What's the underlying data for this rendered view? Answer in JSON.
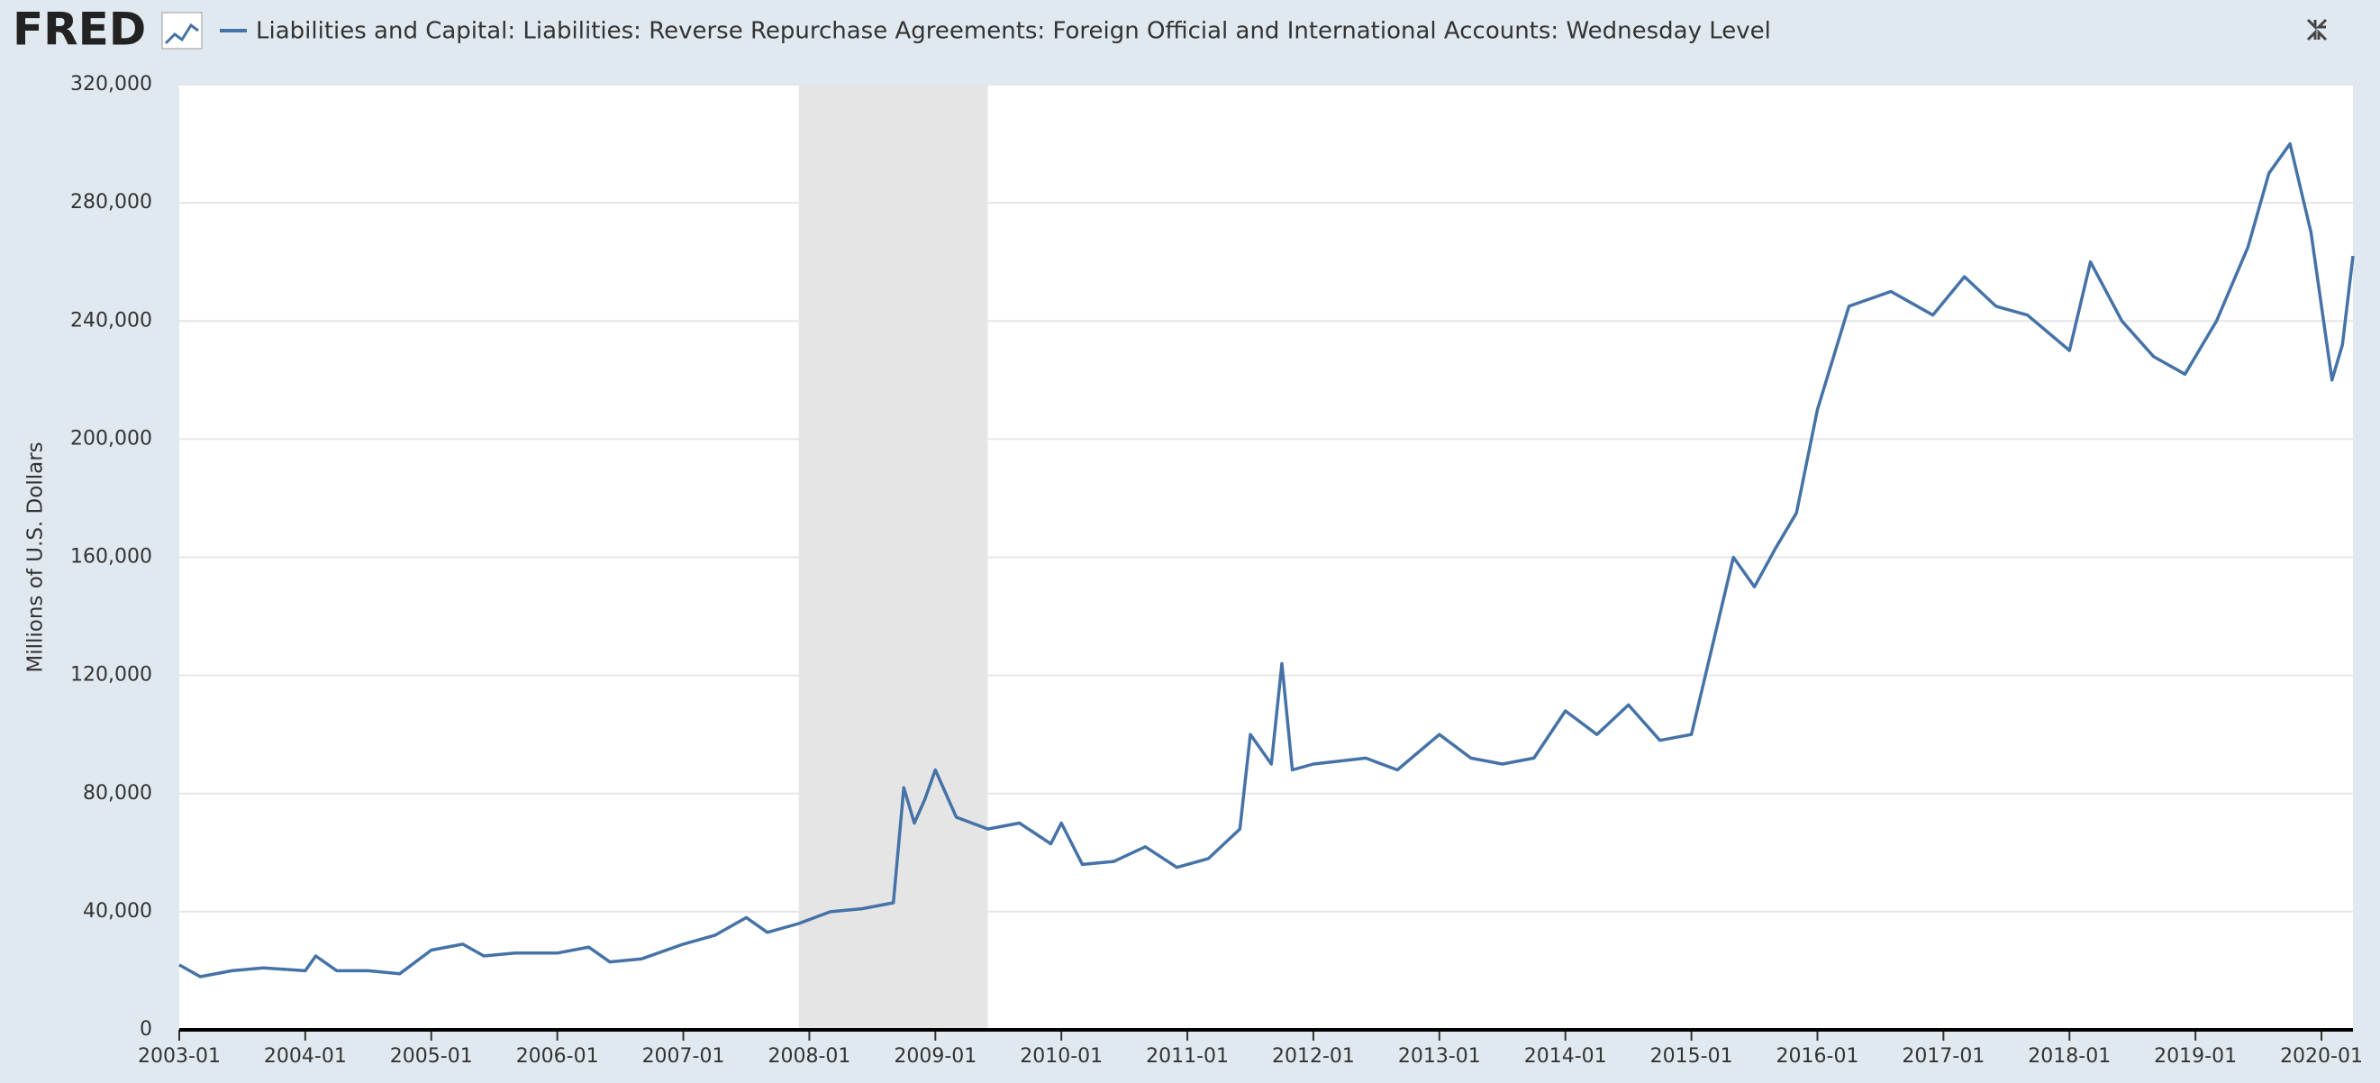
{
  "chart_data": {
    "type": "line",
    "logo": "FRED",
    "y_label": "Millions of U.S. Dollars",
    "series": [
      {
        "name": "Liabilities and Capital: Liabilities: Reverse Repurchase Agreements: Foreign Official and International Accounts: Wednesday Level",
        "color": "#4572a7",
        "values": [
          22000,
          18000,
          20000,
          21000,
          20000,
          25000,
          20000,
          20000,
          19000,
          27000,
          29000,
          25000,
          26000,
          26000,
          28000,
          23000,
          24000,
          29000,
          32000,
          38000,
          33000,
          36000,
          40000,
          41000,
          43000,
          82000,
          70000,
          78000,
          88000,
          72000,
          68000,
          70000,
          63000,
          70000,
          56000,
          57000,
          62000,
          55000,
          58000,
          68000,
          100000,
          90000,
          124000,
          88000,
          90000,
          92000,
          88000,
          100000,
          92000,
          90000,
          92000,
          108000,
          100000,
          110000,
          98000,
          100000,
          130000,
          160000,
          150000,
          163000,
          175000,
          210000,
          245000,
          250000,
          242000,
          255000,
          245000,
          242000,
          230000,
          260000,
          240000,
          228000,
          222000,
          240000,
          265000,
          290000,
          300000,
          270000,
          220000,
          232000,
          262000
        ]
      }
    ],
    "x": [
      "2003-01",
      "2003-03",
      "2003-06",
      "2003-09",
      "2004-01",
      "2004-02",
      "2004-04",
      "2004-07",
      "2004-10",
      "2005-01",
      "2005-04",
      "2005-06",
      "2005-09",
      "2006-01",
      "2006-04",
      "2006-06",
      "2006-09",
      "2007-01",
      "2007-04",
      "2007-07",
      "2007-09",
      "2007-12",
      "2008-03",
      "2008-06",
      "2008-09",
      "2008-10",
      "2008-11",
      "2008-12",
      "2009-01",
      "2009-03",
      "2009-06",
      "2009-09",
      "2009-12",
      "2010-01",
      "2010-03",
      "2010-06",
      "2010-09",
      "2010-12",
      "2011-03",
      "2011-06",
      "2011-07",
      "2011-09",
      "2011-10",
      "2011-11",
      "2012-01",
      "2012-06",
      "2012-09",
      "2013-01",
      "2013-04",
      "2013-07",
      "2013-10",
      "2014-01",
      "2014-04",
      "2014-07",
      "2014-10",
      "2015-01",
      "2015-03",
      "2015-05",
      "2015-07",
      "2015-09",
      "2015-11",
      "2016-01",
      "2016-04",
      "2016-08",
      "2016-12",
      "2017-03",
      "2017-06",
      "2017-09",
      "2018-01",
      "2018-03",
      "2018-06",
      "2018-09",
      "2018-12",
      "2019-03",
      "2019-06",
      "2019-08",
      "2019-10",
      "2019-12",
      "2020-02",
      "2020-03",
      "2020-04"
    ],
    "xlim": [
      "2003-01",
      "2020-04"
    ],
    "xticks": [
      "2003-01",
      "2004-01",
      "2005-01",
      "2006-01",
      "2007-01",
      "2008-01",
      "2009-01",
      "2010-01",
      "2011-01",
      "2012-01",
      "2013-01",
      "2014-01",
      "2015-01",
      "2016-01",
      "2017-01",
      "2018-01",
      "2019-01",
      "2020-01"
    ],
    "ylim": [
      0,
      320000
    ],
    "yticks": [
      0,
      {
        "value": 40000,
        "label": "40,000"
      },
      {
        "value": 80000,
        "label": "80,000"
      },
      {
        "value": 120000,
        "label": "120,000"
      },
      {
        "value": 160000,
        "label": "160,000"
      },
      {
        "value": 200000,
        "label": "200,000"
      },
      {
        "value": 240000,
        "label": "240,000"
      },
      {
        "value": 280000,
        "label": "280,000"
      },
      {
        "value": 320000,
        "label": "320,000"
      }
    ],
    "recessions": [
      [
        "2007-12",
        "2009-06"
      ]
    ],
    "grid": true
  }
}
